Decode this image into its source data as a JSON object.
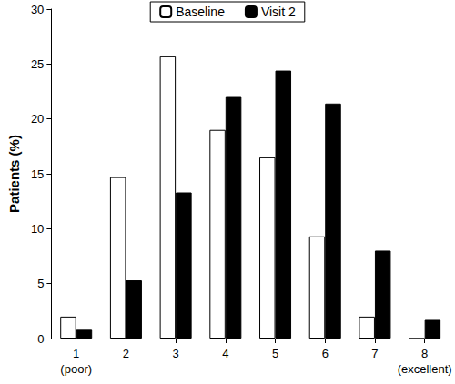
{
  "chart_data": {
    "type": "bar",
    "y_label": "Patients (%)",
    "categories": [
      "1\n(poor)",
      "2",
      "3",
      "4",
      "5",
      "6",
      "7",
      "8\n(excellent)"
    ],
    "series": [
      {
        "name": "Baseline",
        "color": "#ffffff",
        "values": [
          2.0,
          14.7,
          25.7,
          19.0,
          16.5,
          9.3,
          2.0,
          0
        ]
      },
      {
        "name": "Visit 2",
        "color": "#000000",
        "values": [
          0.8,
          5.3,
          13.3,
          22.0,
          24.4,
          21.4,
          8.0,
          1.7
        ]
      }
    ],
    "ylim": [
      0,
      30
    ],
    "yticks": [
      0,
      5,
      10,
      15,
      20,
      25,
      30
    ],
    "grid": false,
    "legend": "top"
  }
}
